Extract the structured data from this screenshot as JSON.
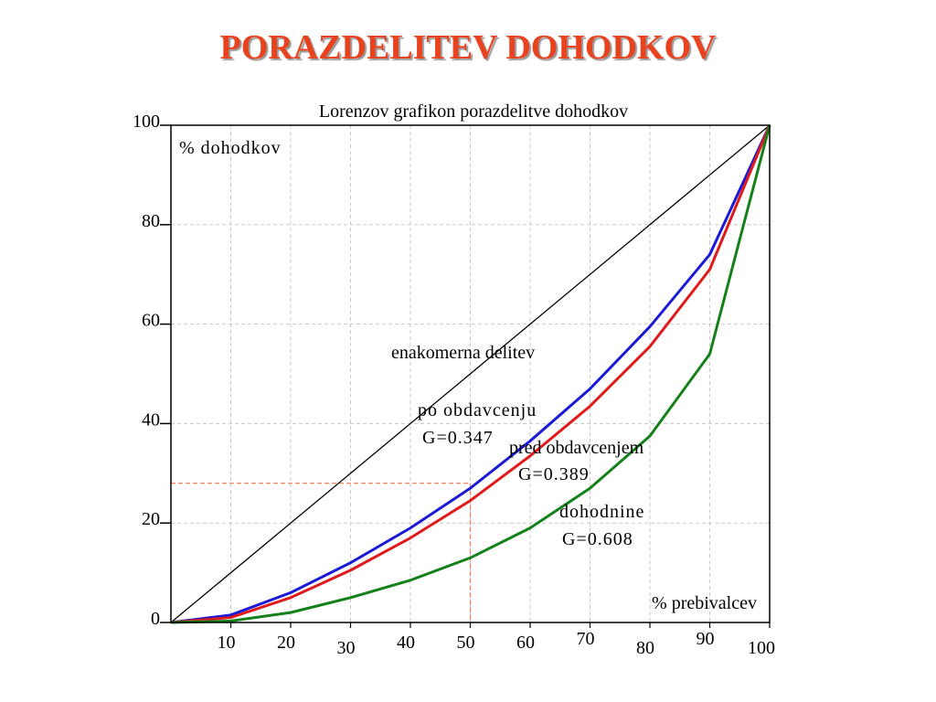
{
  "slide": {
    "title": "PORAZDELITEV DOHODKOV"
  },
  "colors": {
    "title": "#e8431e",
    "equality": "#000000",
    "after_tax": "#1a1ad6",
    "before_tax": "#e01a1a",
    "income": "#14801a",
    "reference": "#f07a5a",
    "grid": "#c8c8c8"
  },
  "chart_data": {
    "type": "line",
    "title": "Lorenzov grafikon porazdelitve dohodkov",
    "ylabel": "% dohodkov",
    "xlabel": "% prebivalcev",
    "xlim": [
      0,
      100
    ],
    "ylim": [
      0,
      100
    ],
    "grid": true,
    "x_ticks": [
      10,
      20,
      30,
      40,
      50,
      60,
      70,
      80,
      90,
      100
    ],
    "y_ticks": [
      0,
      20,
      40,
      60,
      80,
      100
    ],
    "series": [
      {
        "key": "equality",
        "name": "enakomerna delitev",
        "x": [
          0,
          100
        ],
        "values": [
          0,
          100
        ]
      },
      {
        "key": "after_tax",
        "name": "po obdavcenju",
        "gini": "G=0.347",
        "x": [
          0,
          10,
          20,
          30,
          40,
          50,
          60,
          70,
          80,
          90,
          100
        ],
        "values": [
          0,
          1.5,
          6,
          12,
          19,
          27,
          36.5,
          47,
          59.5,
          74,
          100
        ]
      },
      {
        "key": "before_tax",
        "name": "pred obdavcenjem",
        "gini": "G=0.389",
        "x": [
          0,
          10,
          20,
          30,
          40,
          50,
          60,
          70,
          80,
          90,
          100
        ],
        "values": [
          0,
          1,
          5,
          10.5,
          17,
          24.5,
          33.5,
          43.5,
          55.5,
          71,
          100
        ]
      },
      {
        "key": "income",
        "name": "dohodnine",
        "gini": "G=0.608",
        "x": [
          0,
          10,
          20,
          30,
          40,
          50,
          60,
          70,
          80,
          90,
          100
        ],
        "values": [
          0,
          0.3,
          2,
          5,
          8.5,
          13,
          19,
          27,
          37.5,
          54,
          100
        ]
      }
    ],
    "reference_lines": {
      "x": 50,
      "y": 28
    }
  }
}
